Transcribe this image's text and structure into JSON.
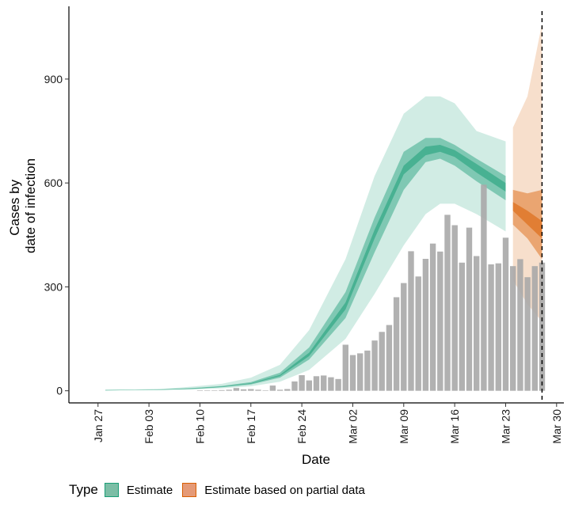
{
  "chart_data": {
    "type": "bar",
    "title": "",
    "xlabel": "Date",
    "ylabel": [
      "Cases by",
      "date of infection"
    ],
    "ylim": [
      -35,
      1110
    ],
    "yticks": [
      0,
      300,
      600,
      900
    ],
    "xlim": [
      "2020-01-23",
      "2020-03-31"
    ],
    "xticks": [
      {
        "date": "2020-01-27",
        "label": "Jan 27"
      },
      {
        "date": "2020-02-03",
        "label": "Feb 03"
      },
      {
        "date": "2020-02-10",
        "label": "Feb 10"
      },
      {
        "date": "2020-02-17",
        "label": "Feb 17"
      },
      {
        "date": "2020-02-24",
        "label": "Feb 24"
      },
      {
        "date": "2020-03-02",
        "label": "Mar 02"
      },
      {
        "date": "2020-03-09",
        "label": "Mar 09"
      },
      {
        "date": "2020-03-16",
        "label": "Mar 16"
      },
      {
        "date": "2020-03-23",
        "label": "Mar 23"
      },
      {
        "date": "2020-03-30",
        "label": "Mar 30"
      }
    ],
    "reference_line": {
      "date": "2020-03-28",
      "style": "dashed"
    },
    "observed_cases": {
      "dates": [
        "2020-02-10",
        "2020-02-11",
        "2020-02-12",
        "2020-02-13",
        "2020-02-14",
        "2020-02-15",
        "2020-02-16",
        "2020-02-17",
        "2020-02-18",
        "2020-02-19",
        "2020-02-20",
        "2020-02-21",
        "2020-02-22",
        "2020-02-23",
        "2020-02-24",
        "2020-02-25",
        "2020-02-26",
        "2020-02-27",
        "2020-02-28",
        "2020-02-29",
        "2020-03-01",
        "2020-03-02",
        "2020-03-03",
        "2020-03-04",
        "2020-03-05",
        "2020-03-06",
        "2020-03-07",
        "2020-03-08",
        "2020-03-09",
        "2020-03-10",
        "2020-03-11",
        "2020-03-12",
        "2020-03-13",
        "2020-03-14",
        "2020-03-15",
        "2020-03-16",
        "2020-03-17",
        "2020-03-18",
        "2020-03-19",
        "2020-03-20",
        "2020-03-21",
        "2020-03-22",
        "2020-03-23",
        "2020-03-24",
        "2020-03-25",
        "2020-03-26",
        "2020-03-27",
        "2020-03-28"
      ],
      "values": [
        1,
        1,
        1,
        2,
        3,
        8,
        4,
        5,
        3,
        1,
        15,
        3,
        5,
        27,
        45,
        30,
        42,
        44,
        39,
        34,
        133,
        103,
        108,
        116,
        145,
        170,
        190,
        270,
        311,
        403,
        330,
        381,
        425,
        402,
        508,
        478,
        370,
        471,
        389,
        595,
        365,
        368,
        442,
        360,
        380,
        328,
        360,
        370
      ]
    },
    "series": [
      {
        "name": "Estimate",
        "color": "#1b9e77",
        "dates": [
          "2020-01-28",
          "2020-02-01",
          "2020-02-05",
          "2020-02-09",
          "2020-02-13",
          "2020-02-17",
          "2020-02-21",
          "2020-02-25",
          "2020-03-01",
          "2020-03-05",
          "2020-03-09",
          "2020-03-12",
          "2020-03-14",
          "2020-03-16",
          "2020-03-19",
          "2020-03-23"
        ],
        "lower90": [
          1,
          1,
          2,
          4,
          7,
          13,
          26,
          60,
          150,
          280,
          420,
          510,
          540,
          540,
          510,
          460
        ],
        "lower50": [
          1,
          2,
          3,
          5,
          10,
          18,
          38,
          90,
          210,
          400,
          580,
          660,
          670,
          650,
          605,
          550
        ],
        "lower20": [
          1,
          2,
          3,
          6,
          11,
          20,
          42,
          100,
          235,
          440,
          625,
          680,
          690,
          675,
          630,
          575
        ],
        "upper20": [
          2,
          2,
          4,
          7,
          12,
          22,
          46,
          110,
          255,
          465,
          650,
          705,
          710,
          695,
          655,
          600
        ],
        "upper50": [
          2,
          3,
          4,
          8,
          14,
          25,
          52,
          125,
          285,
          500,
          690,
          730,
          730,
          710,
          670,
          620
        ],
        "upper90": [
          3,
          4,
          6,
          12,
          20,
          38,
          75,
          175,
          380,
          620,
          800,
          850,
          850,
          830,
          750,
          720
        ]
      },
      {
        "name": "Estimate based on partial data",
        "color": "#d95f02",
        "dates": [
          "2020-03-24",
          "2020-03-26",
          "2020-03-28"
        ],
        "lower90": [
          320,
          250,
          200
        ],
        "lower50": [
          480,
          440,
          380
        ],
        "lower20": [
          520,
          480,
          440
        ],
        "upper20": [
          545,
          520,
          490
        ],
        "upper50": [
          580,
          570,
          580
        ],
        "upper90": [
          760,
          850,
          1060
        ]
      }
    ],
    "legend": {
      "title": "Type",
      "position": "bottom",
      "entries": [
        {
          "label": "Estimate",
          "fill": "#7cbea6",
          "border": "#1b9e77"
        },
        {
          "label": "Estimate based on partial data",
          "fill": "#e59a77",
          "border": "#d95f02"
        }
      ]
    },
    "colors": {
      "bars": "#a9a9a9",
      "axis": "#000000",
      "ribbon_light_opacity": 0.2,
      "ribbon_mid_opacity": 0.45,
      "ribbon_dark_opacity": 0.55
    }
  }
}
